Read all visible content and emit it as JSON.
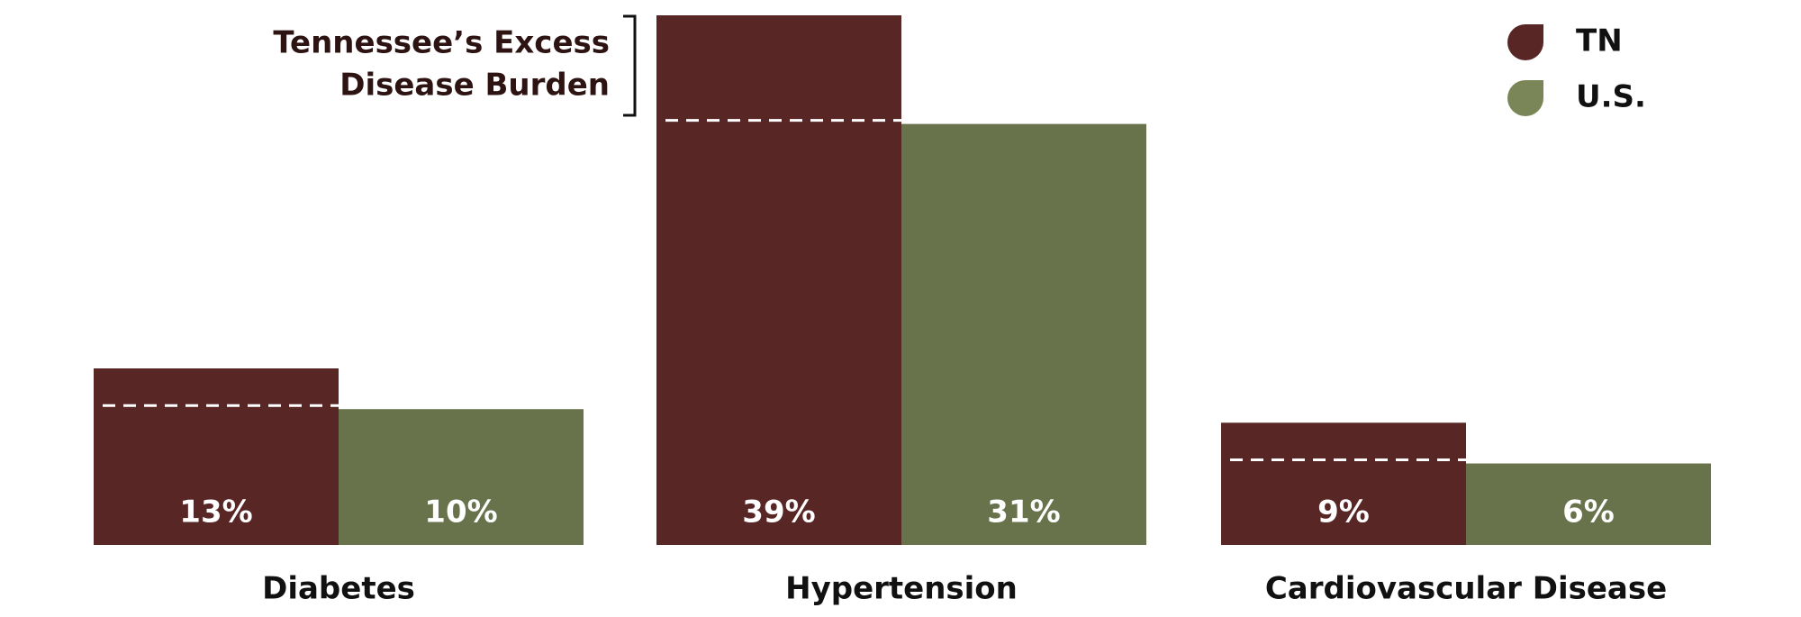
{
  "chart_data": {
    "type": "bar",
    "annotation": [
      "Tennessee’s Excess",
      "Disease Burden"
    ],
    "categories": [
      "Diabetes",
      "Hypertension",
      "Cardiovascular Disease"
    ],
    "series": [
      {
        "name": "TN",
        "color": "#582624",
        "values": [
          13,
          39,
          9
        ],
        "value_labels": [
          "13%",
          "39%",
          "9%"
        ]
      },
      {
        "name": "U.S.",
        "color": "#68724b",
        "values": [
          10,
          31,
          6
        ],
        "value_labels": [
          "10%",
          "31%",
          "6%"
        ]
      }
    ],
    "legend": "top-right"
  }
}
